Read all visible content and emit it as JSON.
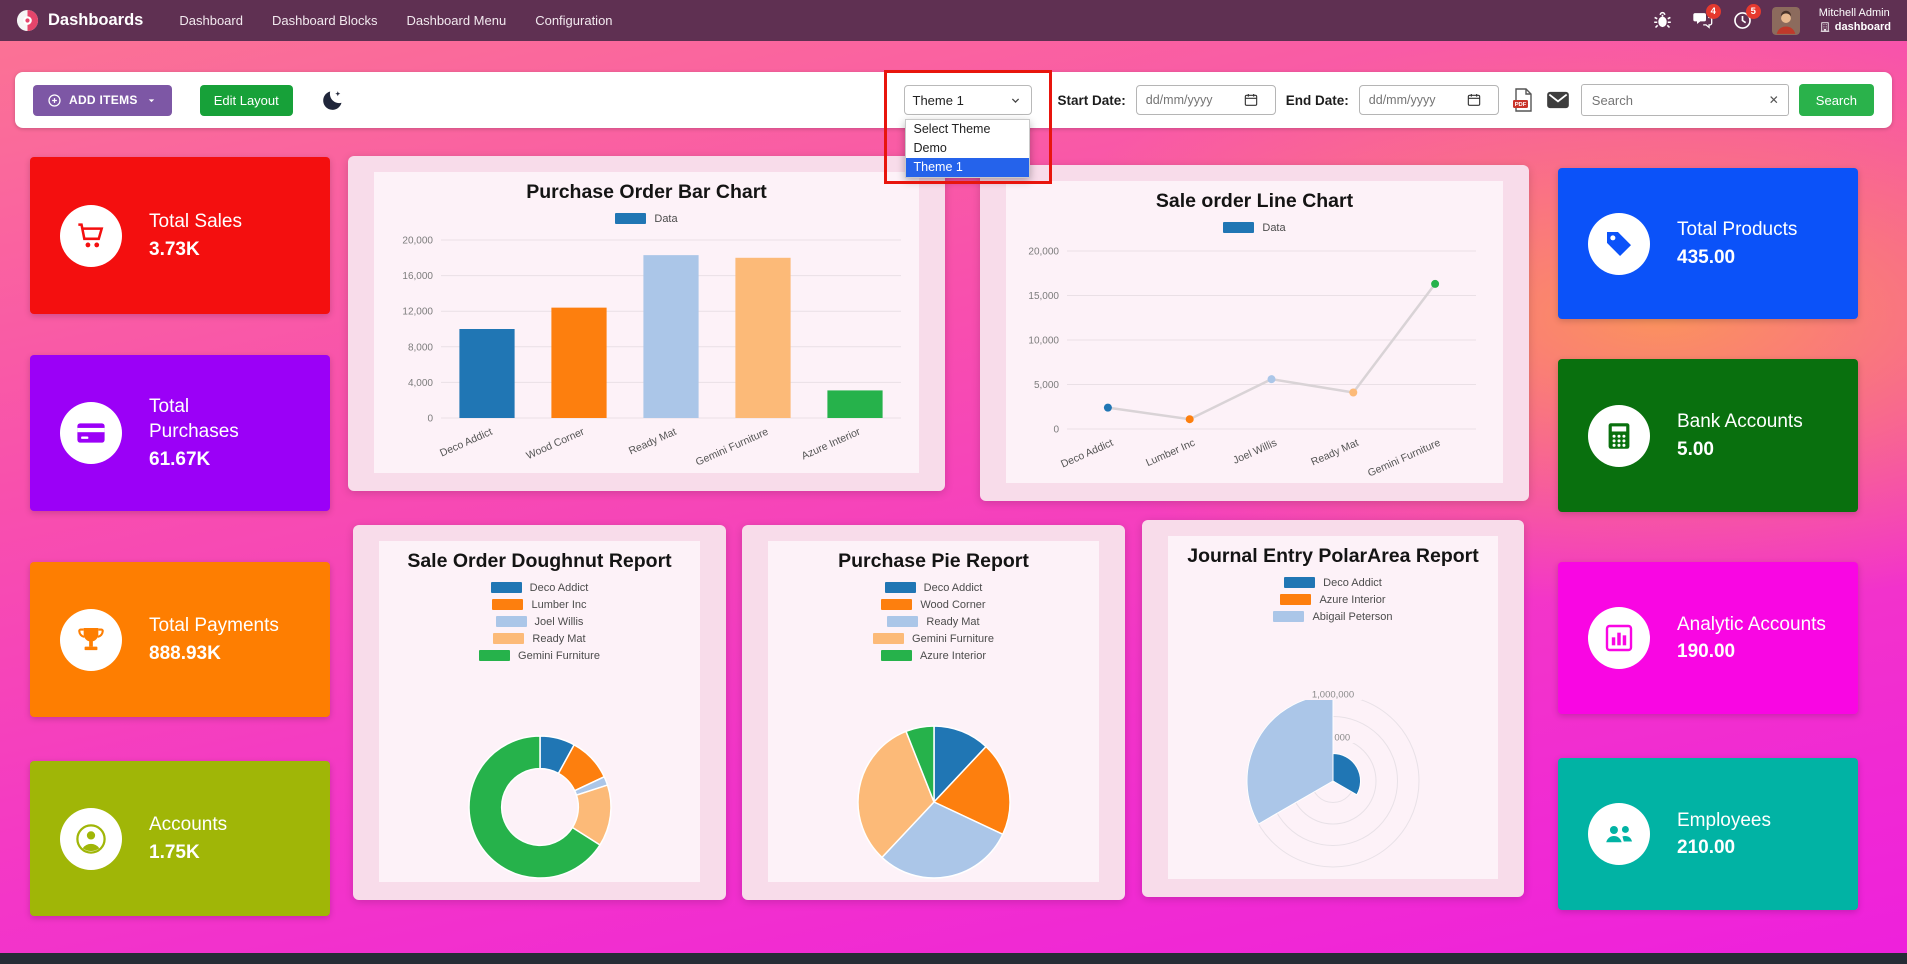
{
  "navbar": {
    "brand": "Dashboards",
    "menu": [
      "Dashboard",
      "Dashboard Blocks",
      "Dashboard Menu",
      "Configuration"
    ],
    "badges": {
      "messages": "4",
      "activities": "5"
    },
    "user": {
      "name": "Mitchell Admin",
      "company": "dashboard"
    }
  },
  "toolbar": {
    "add_items_label": "ADD ITEMS",
    "edit_layout_label": "Edit Layout",
    "theme_select": {
      "value": "Theme 1",
      "options": [
        "Select Theme",
        "Demo",
        "Theme 1"
      ],
      "selected_option": "Theme 1"
    },
    "start_date_label": "Start Date:",
    "end_date_label": "End Date:",
    "date_placeholder": "dd/mm/yyyy",
    "search_placeholder": "Search",
    "search_button_label": "Search"
  },
  "colors": {
    "navbar_bg": "#5f3052",
    "gradient_top": "#fb7295",
    "gradient_bottom": "#ee20dc",
    "gradient_glow": "#fb925e",
    "annotation": "#e8150d",
    "select_highlight": "#2563eb",
    "add_items_btn": "#7d57a5",
    "edit_layout_btn": "#17a139",
    "search_btn": "#2ab24b"
  },
  "tiles_left": [
    {
      "title": "Total Sales",
      "value": "3.73K",
      "color": "#f40f0f",
      "icon": "cart-icon"
    },
    {
      "title": "Total Purchases",
      "value": "61.67K",
      "color": "#9b00f7",
      "icon": "credit-card-icon"
    },
    {
      "title": "Total Payments",
      "value": "888.93K",
      "color": "#fe7e01",
      "icon": "trophy-icon"
    },
    {
      "title": "Accounts",
      "value": "1.75K",
      "color": "#a0b607",
      "icon": "user-icon"
    }
  ],
  "tiles_right": [
    {
      "title": "Total Products",
      "value": "435.00",
      "color": "#0b52f9",
      "icon": "tag-icon"
    },
    {
      "title": "Bank Accounts",
      "value": "5.00",
      "color": "#09700e",
      "icon": "calculator-icon"
    },
    {
      "title": "Analytic Accounts",
      "value": "190.00",
      "color": "#f906e3",
      "icon": "bar-chart-icon"
    },
    {
      "title": "Employees",
      "value": "210.00",
      "color": "#01b3a4",
      "icon": "users-icon"
    }
  ],
  "chart_data": [
    {
      "id": "purchase_bar",
      "type": "bar",
      "title": "Purchase Order Bar Chart",
      "legend_label": "Data",
      "categories": [
        "Deco Addict",
        "Wood Corner",
        "Ready Mat",
        "Gemini Furniture",
        "Azure Interior"
      ],
      "values": [
        10000,
        12400,
        18300,
        18000,
        3100
      ],
      "colors": [
        "#2076b4",
        "#fd7f0e",
        "#abc6e8",
        "#fcba78",
        "#26b24b"
      ],
      "ylim": [
        0,
        20000
      ],
      "yticks": [
        0,
        4000,
        8000,
        12000,
        16000,
        20000
      ]
    },
    {
      "id": "sale_line",
      "type": "line",
      "title": "Sale order Line Chart",
      "legend_label": "Data",
      "categories": [
        "Deco Addict",
        "Lumber Inc",
        "Joel Willis",
        "Ready Mat",
        "Gemini Furniture"
      ],
      "values": [
        2400,
        1100,
        5600,
        4100,
        16300
      ],
      "point_colors": [
        "#2076b4",
        "#fd7f0e",
        "#abc6e8",
        "#fcba78",
        "#26b24b"
      ],
      "line_color": "#d9d3d6",
      "ylim": [
        0,
        20000
      ],
      "yticks": [
        0,
        5000,
        10000,
        15000,
        20000
      ]
    },
    {
      "id": "sale_doughnut",
      "type": "doughnut",
      "title": "Sale Order Doughnut Report",
      "labels": [
        "Deco Addict",
        "Lumber Inc",
        "Joel Willis",
        "Ready Mat",
        "Gemini Furniture"
      ],
      "values": [
        8,
        10,
        2,
        14,
        66
      ],
      "colors": [
        "#2076b4",
        "#fd7f0e",
        "#abc6e8",
        "#fcba78",
        "#26b24b"
      ]
    },
    {
      "id": "purchase_pie",
      "type": "pie",
      "title": "Purchase Pie Report",
      "labels": [
        "Deco Addict",
        "Wood Corner",
        "Ready Mat",
        "Gemini Furniture",
        "Azure Interior"
      ],
      "values": [
        12,
        20,
        30,
        32,
        6
      ],
      "colors": [
        "#2076b4",
        "#fd7f0e",
        "#abc6e8",
        "#fcba78",
        "#26b24b"
      ]
    },
    {
      "id": "journal_polar",
      "type": "polarArea",
      "title": "Journal Entry PolarArea Report",
      "labels": [
        "Deco Addict",
        "Azure Interior",
        "Abigail Peterson"
      ],
      "values": [
        320000,
        15000,
        1000000
      ],
      "colors": [
        "#2076b4",
        "#fd7f0e",
        "#abc6e8"
      ],
      "rticks": [
        "1,000,000",
        "500,000"
      ],
      "rmax": 1000000
    }
  ]
}
